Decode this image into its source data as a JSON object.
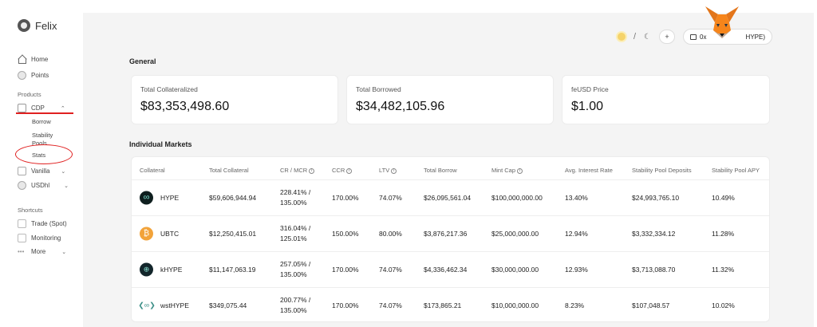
{
  "app": {
    "name": "Felix"
  },
  "sidebar": {
    "home": "Home",
    "points": "Points",
    "products_label": "Products",
    "cdp": "CDP",
    "cdp_children": [
      "Borrow",
      "Stability\nPools",
      "Stats"
    ],
    "vanilla": "Vanilla",
    "usdhl": "USDhl",
    "shortcuts_label": "Shortcuts",
    "trade": "Trade (Spot)",
    "monitoring": "Monitoring",
    "more": "More"
  },
  "topbar": {
    "theme_separator": "/",
    "wallet_address": "0x",
    "wallet_suffix": "HYPE)"
  },
  "general": {
    "title": "General",
    "cards": [
      {
        "label": "Total Collateralized",
        "value": "$83,353,498.60"
      },
      {
        "label": "Total Borrowed",
        "value": "$34,482,105.96"
      },
      {
        "label": "feUSD Price",
        "value": "$1.00"
      }
    ]
  },
  "markets": {
    "title": "Individual Markets",
    "headers": [
      "Collateral",
      "Total Collateral",
      "CR / MCR",
      "CCR",
      "LTV",
      "Total Borrow",
      "Mint Cap",
      "Avg. Interest Rate",
      "Stability Pool Deposits",
      "Stability Pool APY"
    ],
    "rows": [
      {
        "icon": "hype-icon",
        "asset": "HYPE",
        "total_collateral": "$59,606,944.94",
        "cr": "228.41% /",
        "mcr": "135.00%",
        "ccr": "170.00%",
        "ltv": "74.07%",
        "total_borrow": "$26,095,561.04",
        "mint_cap": "$100,000,000.00",
        "avg_rate": "13.40%",
        "sp_deposits": "$24,993,765.10",
        "sp_apy": "10.49%"
      },
      {
        "icon": "ubtc-icon",
        "asset": "UBTC",
        "total_collateral": "$12,250,415.01",
        "cr": "316.04% /",
        "mcr": "125.01%",
        "ccr": "150.00%",
        "ltv": "80.00%",
        "total_borrow": "$3,876,217.36",
        "mint_cap": "$25,000,000.00",
        "avg_rate": "12.94%",
        "sp_deposits": "$3,332,334.12",
        "sp_apy": "11.28%"
      },
      {
        "icon": "khype-icon",
        "asset": "kHYPE",
        "total_collateral": "$11,147,063.19",
        "cr": "257.05% /",
        "mcr": "135.00%",
        "ccr": "170.00%",
        "ltv": "74.07%",
        "total_borrow": "$4,336,462.34",
        "mint_cap": "$30,000,000.00",
        "avg_rate": "12.93%",
        "sp_deposits": "$3,713,088.70",
        "sp_apy": "11.32%"
      },
      {
        "icon": "wsthype-icon",
        "asset": "wstHYPE",
        "total_collateral": "$349,075.44",
        "cr": "200.77% /",
        "mcr": "135.00%",
        "ccr": "170.00%",
        "ltv": "74.07%",
        "total_borrow": "$173,865.21",
        "mint_cap": "$10,000,000.00",
        "avg_rate": "8.23%",
        "sp_deposits": "$107,048.57",
        "sp_apy": "10.02%"
      }
    ]
  },
  "colors": {
    "annotation": "#e02020",
    "background": "#f4f4f4",
    "card": "#ffffff"
  }
}
